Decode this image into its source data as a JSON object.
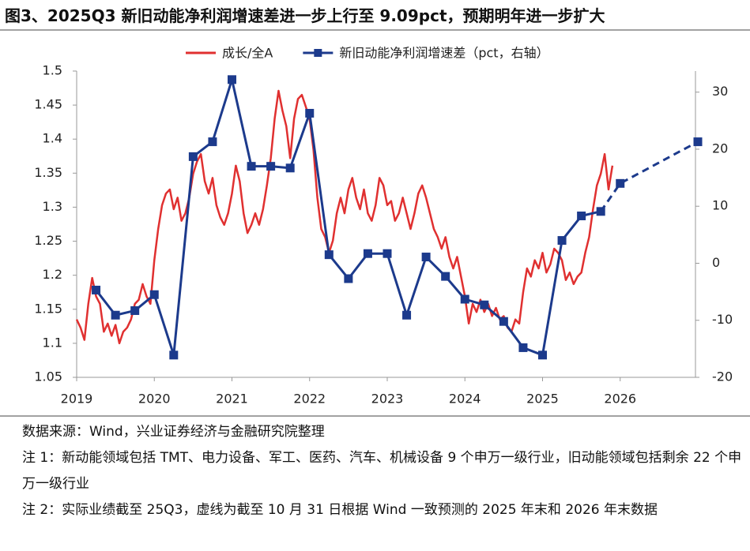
{
  "chart_data": {
    "type": "line",
    "title": "图3、2025Q3 新旧动能净利润增速差进一步上行至 9.09pct，预期明年进一步扩大",
    "xlim": [
      2019,
      2027
    ],
    "xticks": [
      2019,
      2020,
      2021,
      2022,
      2023,
      2024,
      2025,
      2026
    ],
    "ylim": [
      1.05,
      1.5
    ],
    "yticks": [
      1.05,
      1.1,
      1.15,
      1.2,
      1.25,
      1.3,
      1.35,
      1.4,
      1.45,
      1.5
    ],
    "y2lim": [
      -20,
      33.7
    ],
    "y2ticks": [
      -20,
      -10,
      0,
      10,
      20,
      30
    ],
    "grid": false,
    "legend": "top",
    "series": [
      {
        "name": "成长/全A",
        "color": "#e03030",
        "axis": "y",
        "x": [
          2019.0,
          2019.05,
          2019.1,
          2019.15,
          2019.2,
          2019.25,
          2019.3,
          2019.35,
          2019.4,
          2019.45,
          2019.5,
          2019.55,
          2019.6,
          2019.65,
          2019.7,
          2019.75,
          2019.8,
          2019.85,
          2019.9,
          2019.95,
          2020.0,
          2020.05,
          2020.1,
          2020.15,
          2020.2,
          2020.25,
          2020.3,
          2020.35,
          2020.4,
          2020.45,
          2020.5,
          2020.55,
          2020.6,
          2020.65,
          2020.7,
          2020.75,
          2020.8,
          2020.85,
          2020.9,
          2020.95,
          2021.0,
          2021.05,
          2021.1,
          2021.15,
          2021.2,
          2021.25,
          2021.3,
          2021.35,
          2021.4,
          2021.45,
          2021.5,
          2021.55,
          2021.6,
          2021.65,
          2021.7,
          2021.75,
          2021.8,
          2021.85,
          2021.9,
          2021.95,
          2022.0,
          2022.05,
          2022.1,
          2022.15,
          2022.2,
          2022.25,
          2022.3,
          2022.35,
          2022.4,
          2022.45,
          2022.5,
          2022.55,
          2022.6,
          2022.65,
          2022.7,
          2022.75,
          2022.8,
          2022.85,
          2022.9,
          2022.95,
          2023.0,
          2023.05,
          2023.1,
          2023.15,
          2023.2,
          2023.25,
          2023.3,
          2023.35,
          2023.4,
          2023.45,
          2023.5,
          2023.55,
          2023.6,
          2023.65,
          2023.7,
          2023.75,
          2023.8,
          2023.85,
          2023.9,
          2023.95,
          2024.0,
          2024.05,
          2024.1,
          2024.15,
          2024.2,
          2024.25,
          2024.3,
          2024.35,
          2024.4,
          2024.45,
          2024.5,
          2024.55,
          2024.6,
          2024.65,
          2024.7,
          2024.75,
          2024.8,
          2024.85,
          2024.9,
          2024.95,
          2025.0,
          2025.05,
          2025.1,
          2025.15,
          2025.2,
          2025.25,
          2025.3,
          2025.35,
          2025.4,
          2025.45,
          2025.5,
          2025.55,
          2025.6,
          2025.65,
          2025.7,
          2025.75,
          2025.8,
          2025.85,
          2025.9
        ],
        "values": [
          1.135,
          1.123,
          1.105,
          1.158,
          1.196,
          1.169,
          1.158,
          1.117,
          1.129,
          1.111,
          1.127,
          1.1,
          1.117,
          1.123,
          1.135,
          1.158,
          1.164,
          1.187,
          1.169,
          1.158,
          1.222,
          1.268,
          1.303,
          1.32,
          1.326,
          1.297,
          1.314,
          1.28,
          1.291,
          1.314,
          1.349,
          1.367,
          1.378,
          1.338,
          1.32,
          1.343,
          1.303,
          1.285,
          1.274,
          1.291,
          1.32,
          1.361,
          1.338,
          1.291,
          1.262,
          1.274,
          1.291,
          1.274,
          1.297,
          1.332,
          1.372,
          1.43,
          1.471,
          1.442,
          1.419,
          1.372,
          1.43,
          1.459,
          1.465,
          1.448,
          1.43,
          1.384,
          1.314,
          1.268,
          1.256,
          1.233,
          1.251,
          1.291,
          1.314,
          1.291,
          1.326,
          1.343,
          1.314,
          1.297,
          1.326,
          1.291,
          1.28,
          1.303,
          1.343,
          1.332,
          1.303,
          1.309,
          1.28,
          1.291,
          1.314,
          1.291,
          1.268,
          1.291,
          1.32,
          1.332,
          1.314,
          1.291,
          1.268,
          1.256,
          1.239,
          1.256,
          1.227,
          1.21,
          1.227,
          1.198,
          1.169,
          1.129,
          1.158,
          1.146,
          1.164,
          1.146,
          1.158,
          1.14,
          1.152,
          1.135,
          1.14,
          1.123,
          1.117,
          1.135,
          1.129,
          1.175,
          1.21,
          1.198,
          1.222,
          1.21,
          1.233,
          1.204,
          1.216,
          1.239,
          1.233,
          1.222,
          1.193,
          1.204,
          1.187,
          1.198,
          1.204,
          1.233,
          1.256,
          1.297,
          1.332,
          1.349,
          1.378,
          1.326,
          1.361
        ]
      },
      {
        "name": "新旧动能净利润增速差（pct，右轴）",
        "color": "#1c3a8c",
        "axis": "y2",
        "marker": "square",
        "dashed_from_x": 2025.75,
        "x": [
          2019.25,
          2019.5,
          2019.75,
          2020.0,
          2020.25,
          2020.5,
          2020.75,
          2021.0,
          2021.25,
          2021.5,
          2021.75,
          2022.0,
          2022.25,
          2022.5,
          2022.75,
          2023.0,
          2023.25,
          2023.5,
          2023.75,
          2024.0,
          2024.25,
          2024.5,
          2024.75,
          2025.0,
          2025.25,
          2025.5,
          2025.75,
          2026.0,
          2027.0
        ],
        "values": [
          -4.7,
          -9.1,
          -8.3,
          -5.5,
          -16.1,
          18.7,
          21.3,
          32.2,
          17.0,
          17.0,
          16.7,
          26.3,
          1.5,
          -2.7,
          1.7,
          1.7,
          -9.1,
          1.1,
          -2.3,
          -6.3,
          -7.3,
          -10.2,
          -14.8,
          -16.1,
          4.0,
          8.3,
          9.09,
          14.0,
          21.3
        ]
      }
    ]
  },
  "notes": [
    "数据来源：Wind，兴业证券经济与金融研究院整理",
    "注 1：新动能领域包括 TMT、电力设备、军工、医药、汽车、机械设备 9 个申万一级行业，旧动能领域包括剩余 22 个申万一级行业",
    "注 2：实际业绩截至 25Q3，虚线为截至 10 月 31 日根据 Wind 一致预测的 2025 年末和 2026 年末数据"
  ]
}
